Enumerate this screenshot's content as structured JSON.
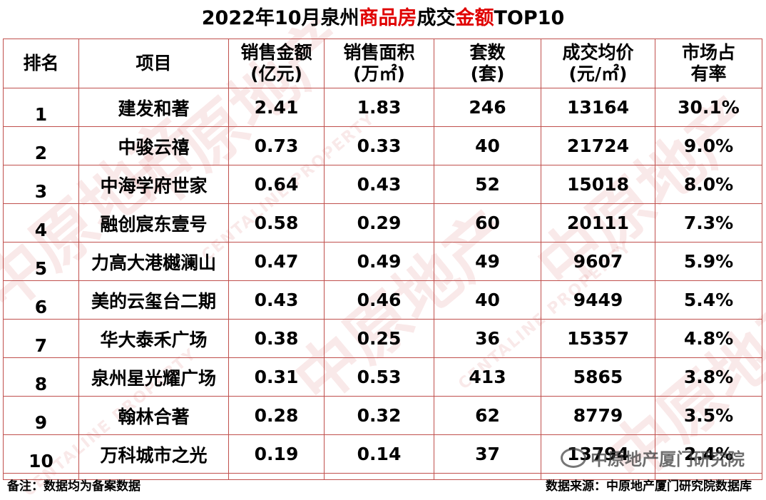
{
  "title": {
    "part1": "2022年10月泉州",
    "accent1": "商品房",
    "part2": "成交",
    "accent2": "金额",
    "part3": "TOP10"
  },
  "headers": {
    "rank": "排名",
    "project": "项目",
    "amount": "销售金额(亿元)",
    "area": "销售面积(万㎡)",
    "units": "套数(套)",
    "price": "成交均价(元/㎡)",
    "share": "市场占有率"
  },
  "rows": [
    {
      "rank": "1",
      "project": "建发和著",
      "amount": "2.41",
      "area": "1.83",
      "units": "246",
      "price": "13164",
      "share": "30.1%"
    },
    {
      "rank": "2",
      "project": "中骏云禧",
      "amount": "0.73",
      "area": "0.33",
      "units": "40",
      "price": "21724",
      "share": "9.0%"
    },
    {
      "rank": "3",
      "project": "中海学府世家",
      "amount": "0.64",
      "area": "0.43",
      "units": "52",
      "price": "15018",
      "share": "8.0%"
    },
    {
      "rank": "4",
      "project": "融创宸东壹号",
      "amount": "0.58",
      "area": "0.29",
      "units": "60",
      "price": "20111",
      "share": "7.3%"
    },
    {
      "rank": "5",
      "project": "力高大港樾澜山",
      "amount": "0.47",
      "area": "0.49",
      "units": "49",
      "price": "9607",
      "share": "5.9%"
    },
    {
      "rank": "6",
      "project": "美的云玺台二期",
      "amount": "0.43",
      "area": "0.46",
      "units": "40",
      "price": "9449",
      "share": "5.4%"
    },
    {
      "rank": "7",
      "project": "华大泰禾广场",
      "amount": "0.38",
      "area": "0.25",
      "units": "36",
      "price": "15357",
      "share": "4.8%"
    },
    {
      "rank": "8",
      "project": "泉州星光耀广场",
      "amount": "0.31",
      "area": "0.53",
      "units": "413",
      "price": "5865",
      "share": "3.8%"
    },
    {
      "rank": "9",
      "project": "翰林合著",
      "amount": "0.28",
      "area": "0.32",
      "units": "62",
      "price": "8779",
      "share": "3.5%"
    },
    {
      "rank": "10",
      "project": "万科城市之光",
      "amount": "0.19",
      "area": "0.14",
      "units": "37",
      "price": "13794",
      "share": "2.4%"
    }
  ],
  "footer": {
    "note": "备注：数据均为备案数据",
    "source": "数据来源：中原地产厦门研究院数据库"
  },
  "watermark": {
    "cn": "中原地产",
    "en": "CENTALINE PROPERTY",
    "wechat": "中原地产厦门研究院"
  }
}
